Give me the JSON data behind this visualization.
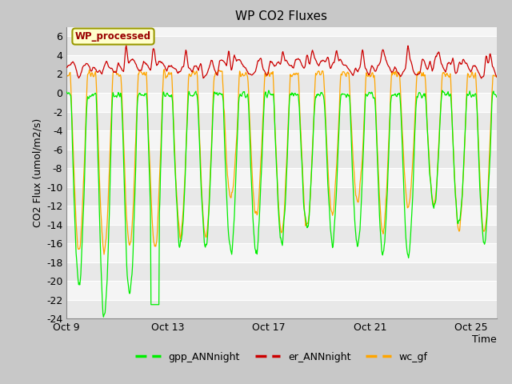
{
  "title": "WP CO2 Fluxes",
  "ylabel": "CO2 Flux (umol/m2/s)",
  "xlabel": "Time",
  "ylim": [
    -24,
    7
  ],
  "yticks": [
    -24,
    -22,
    -20,
    -18,
    -16,
    -14,
    -12,
    -10,
    -8,
    -6,
    -4,
    -2,
    0,
    2,
    4,
    6
  ],
  "xtick_labels": [
    "Oct 9",
    "Oct 13",
    "Oct 17",
    "Oct 21",
    "Oct 25"
  ],
  "fig_bg_color": "#c8c8c8",
  "plot_bg": "#f5f5f5",
  "grid_color": "#ffffff",
  "alt_band_color": "#e8e8e8",
  "gpp_color": "#00ee00",
  "er_color": "#cc0000",
  "wc_color": "#ffa500",
  "legend_label": "WP_processed",
  "legend_text_color": "#990000",
  "legend_box_color": "#ffffcc",
  "legend_box_edge": "#999900",
  "n_days": 17,
  "points_per_day": 48,
  "seed": 42
}
